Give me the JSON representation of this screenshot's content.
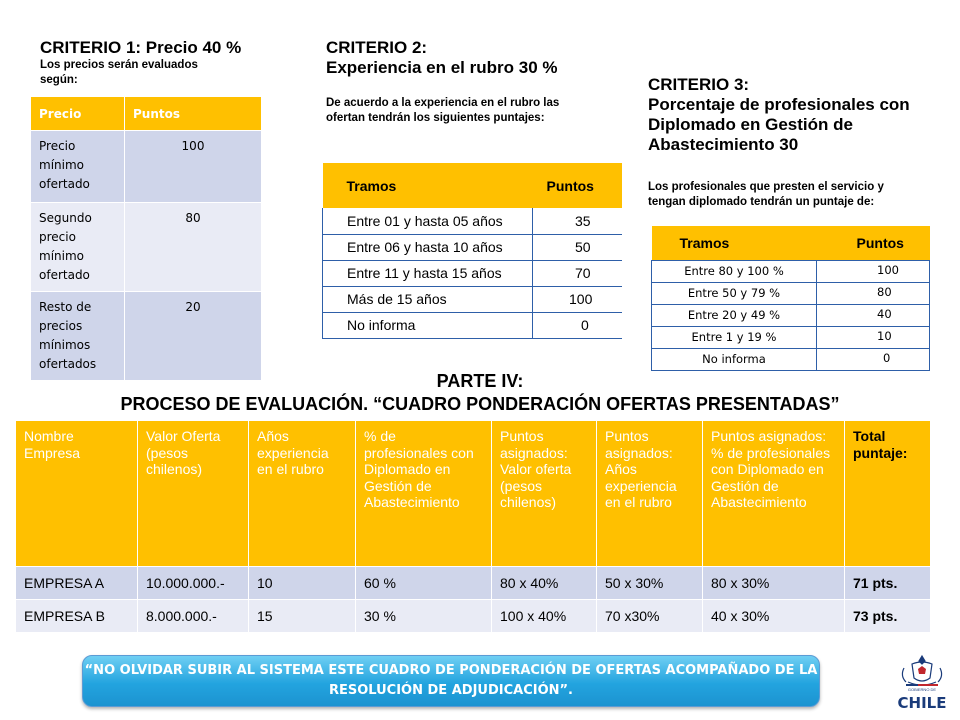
{
  "criterio1": {
    "title": "CRITERIO 1: Precio 40 %",
    "desc_line1": "Los precios serán  evaluados",
    "desc_line2": "según:",
    "headers": [
      "Precio",
      "Puntos"
    ],
    "rows": [
      {
        "label": "Precio mínimo ofertado",
        "points": "100"
      },
      {
        "label": "Segundo precio mínimo ofertado",
        "points": "80"
      },
      {
        "label": "Resto de precios mínimos ofertados",
        "points": "20"
      }
    ]
  },
  "criterio2": {
    "title_line1": "CRITERIO 2:",
    "title_line2": "Experiencia en el rubro 30 %",
    "desc_line1": "De acuerdo a la experiencia en el rubro las",
    "desc_line2": "ofertan tendrán los siguientes puntajes:",
    "headers": [
      "Tramos",
      "Puntos"
    ],
    "rows": [
      {
        "tramo": "Entre 01 y hasta 05 años",
        "points": "35"
      },
      {
        "tramo": "Entre 06 y hasta 10 años",
        "points": "50"
      },
      {
        "tramo": "Entre 11 y hasta 15 años",
        "points": "70"
      },
      {
        "tramo": "Más de 15 años",
        "points": "100"
      },
      {
        "tramo": "No informa",
        "points": "0"
      }
    ]
  },
  "criterio3": {
    "title_line1": "CRITERIO 3:",
    "title_line2": "Porcentaje de profesionales con",
    "title_line3": "Diplomado en Gestión de",
    "title_line4": "Abastecimiento 30",
    "desc_line1": "Los profesionales que presten el servicio y",
    "desc_line2": "tengan diplomado tendrán un puntaje de:",
    "headers": [
      "Tramos",
      "Puntos"
    ],
    "rows": [
      {
        "tramo": "Entre 80 y 100 %",
        "points": "100"
      },
      {
        "tramo": "Entre 50 y 79 %",
        "points": "80"
      },
      {
        "tramo": "Entre 20 y 49 %",
        "points": "40"
      },
      {
        "tramo": "Entre 1 y 19 %",
        "points": "10"
      },
      {
        "tramo": "No informa",
        "points": "0"
      }
    ]
  },
  "parte": {
    "line1": "PARTE IV:",
    "line2": "PROCESO DE EVALUACIÓN. “CUADRO PONDERACIÓN OFERTAS  PRESENTADAS”"
  },
  "evaluacion": {
    "headers": [
      "Nombre Empresa",
      "Valor Oferta (pesos chilenos)",
      "Años experiencia en el rubro",
      "% de profesionales con Diplomado en Gestión de Abastecimiento",
      "Puntos asignados: Valor oferta (pesos chilenos)",
      "Puntos asignados: Años experiencia en el rubro",
      "Puntos asignados: % de profesionales con Diplomado en Gestión de Abastecimiento",
      "Total puntaje:"
    ],
    "rows": [
      [
        "EMPRESA A",
        "10.000.000.-",
        "10",
        "60 %",
        "80 x 40%",
        "50 x 30%",
        "80 x 30%",
        "71 pts."
      ],
      [
        "EMPRESA B",
        "8.000.000.-",
        "15",
        "30 %",
        "100 x 40%",
        "70 x30%",
        "40 x 30%",
        "73 pts."
      ]
    ]
  },
  "banner": {
    "line1": "“NO OLVIDAR SUBIR AL SISTEMA ESTE CUADRO DE PONDERACIÓN DE OFERTAS ACOMPAÑADO DE LA",
    "line2": "RESOLUCIÓN DE ADJUDICACIÓN”."
  },
  "logo": {
    "top_text": "GOBIERNO DE",
    "name": "CHILE"
  },
  "colors": {
    "header_orange": "#ffc000",
    "row_dark": "#cfd5ea",
    "row_light": "#e9ebf5",
    "banner_blue": "#23a4df"
  }
}
